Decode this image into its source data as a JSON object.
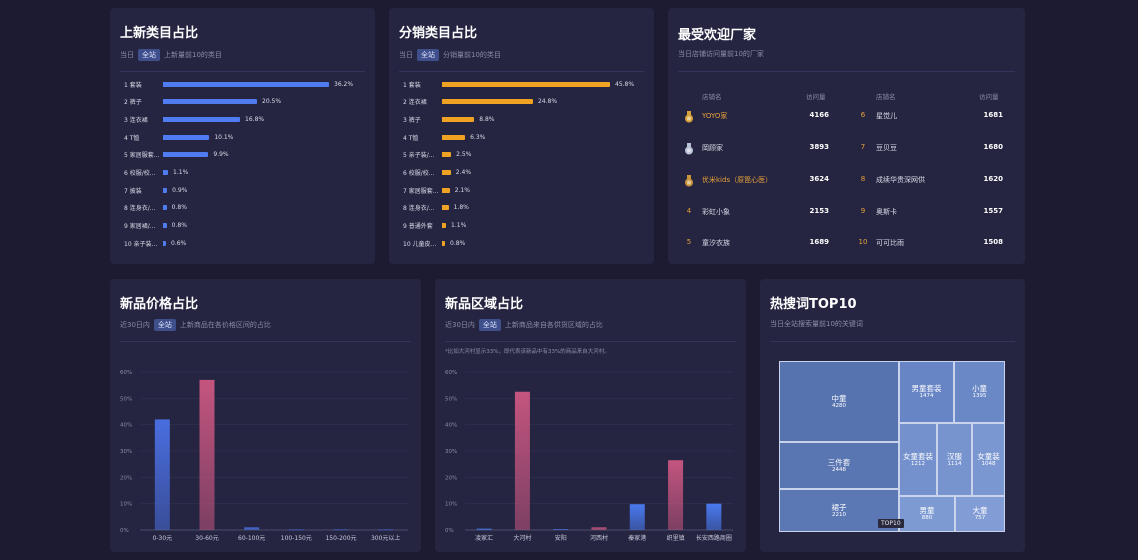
{
  "panel1": {
    "title": "上新类目占比",
    "sub_prefix": "当日",
    "tag": "全站",
    "sub_suffix": "上新量前10的类目",
    "color": "#4f7cf0",
    "items": [
      {
        "label": "1 套装",
        "value": 36.2,
        "value_text": "36.2%"
      },
      {
        "label": "2 裤子",
        "value": 20.5,
        "value_text": "20.5%"
      },
      {
        "label": "3 连衣裙",
        "value": 16.8,
        "value_text": "16.8%"
      },
      {
        "label": "4 T恤",
        "value": 10.1,
        "value_text": "10.1%"
      },
      {
        "label": "5 家居服套...",
        "value": 9.9,
        "value_text": "9.9%"
      },
      {
        "label": "6 校服/校...",
        "value": 1.1,
        "value_text": "1.1%"
      },
      {
        "label": "7 披装",
        "value": 0.9,
        "value_text": "0.9%"
      },
      {
        "label": "8 连身衣/...",
        "value": 0.8,
        "value_text": "0.8%"
      },
      {
        "label": "9 家居裙/...",
        "value": 0.8,
        "value_text": "0.8%"
      },
      {
        "label": "10 亲子装...",
        "value": 0.6,
        "value_text": "0.6%"
      }
    ]
  },
  "panel2": {
    "title": "分销类目占比",
    "sub_prefix": "当日",
    "tag": "全站",
    "sub_suffix": "分销量前10的类目",
    "color": "#f0a323",
    "items": [
      {
        "label": "1 套装",
        "value": 45.8,
        "value_text": "45.8%"
      },
      {
        "label": "2 连衣裙",
        "value": 24.8,
        "value_text": "24.8%"
      },
      {
        "label": "3 裤子",
        "value": 8.8,
        "value_text": "8.8%"
      },
      {
        "label": "4 T恤",
        "value": 6.3,
        "value_text": "6.3%"
      },
      {
        "label": "5 亲子装/...",
        "value": 2.5,
        "value_text": "2.5%"
      },
      {
        "label": "6 校服/校...",
        "value": 2.4,
        "value_text": "2.4%"
      },
      {
        "label": "7 家居服套...",
        "value": 2.1,
        "value_text": "2.1%"
      },
      {
        "label": "8 连身衣/...",
        "value": 1.8,
        "value_text": "1.8%"
      },
      {
        "label": "9 普通外套",
        "value": 1.1,
        "value_text": "1.1%"
      },
      {
        "label": "10 儿童皮...",
        "value": 0.8,
        "value_text": "0.8%"
      }
    ]
  },
  "panel3": {
    "title": "最受欢迎厂家",
    "sub": "当日店铺访问量前10的厂家",
    "col_name": "店铺名",
    "col_visits": "访问量",
    "left": [
      {
        "rank": "1",
        "medal": "gold",
        "name": "YOYO家",
        "visits": "4166",
        "highlight": true
      },
      {
        "rank": "2",
        "medal": "silver",
        "name": "岡顾家",
        "visits": "3893",
        "highlight": false
      },
      {
        "rank": "3",
        "medal": "bronze",
        "name": "优米kids（原箆心医）",
        "visits": "3624",
        "highlight": true
      },
      {
        "rank": "4",
        "medal": "",
        "name": "彩虹小象",
        "visits": "2153",
        "highlight": false
      },
      {
        "rank": "5",
        "medal": "",
        "name": "童汐衣族",
        "visits": "1689",
        "highlight": false
      }
    ],
    "right": [
      {
        "rank": "6",
        "name": "星觉儿",
        "visits": "1681"
      },
      {
        "rank": "7",
        "name": "豆贝豆",
        "visits": "1680"
      },
      {
        "rank": "8",
        "name": "成续华贵深网供",
        "visits": "1620"
      },
      {
        "rank": "9",
        "name": "奥斯卡",
        "visits": "1557"
      },
      {
        "rank": "10",
        "name": "可可比雨",
        "visits": "1508"
      }
    ]
  },
  "panel4": {
    "title": "新品价格占比",
    "sub_prefix": "近30日内",
    "tag": "全站",
    "sub_suffix": "上新商品在各价格区间的占比"
  },
  "panel5": {
    "title": "新品区域占比",
    "sub_prefix": "近30日内",
    "tag": "全站",
    "sub_suffix": "上新商品来自各供货区域的占比",
    "note": "*比如大河村显示33%，即代表该新品中有33%的商品来自大河村。"
  },
  "panel6": {
    "title": "热搜词TOP10",
    "sub": "当日全站搜索量前10的关键词",
    "badge": "TOP10",
    "cells": [
      {
        "name": "中童",
        "value": "4280"
      },
      {
        "name": "三件套",
        "value": "2448"
      },
      {
        "name": "裙子",
        "value": "2210"
      },
      {
        "name": "男童套装",
        "value": "1474"
      },
      {
        "name": "小童",
        "value": "1395"
      },
      {
        "name": "女童套装",
        "value": "1212"
      },
      {
        "name": "汉服",
        "value": "1114"
      },
      {
        "name": "女童装",
        "value": "1048"
      },
      {
        "name": "男童",
        "value": "880"
      },
      {
        "name": "大童",
        "value": "757"
      }
    ]
  },
  "chart_data": [
    {
      "type": "bar",
      "title": "新品价格占比",
      "categories": [
        "0-30元",
        "30-60元",
        "60-100元",
        "100-150元",
        "150-200元",
        "300元以上"
      ],
      "values": [
        42,
        57,
        1,
        0.2,
        0.2,
        0.2
      ],
      "ylim": [
        0,
        60
      ],
      "yticks": [
        "0%",
        "10%",
        "20%",
        "30%",
        "40%",
        "50%",
        "60%"
      ],
      "colors": [
        "#4a6ee0",
        "#c4557f",
        "#4a6ee0",
        "#4a6ee0",
        "#4a6ee0",
        "#4a6ee0"
      ]
    },
    {
      "type": "bar",
      "title": "新品区域占比",
      "categories": [
        "凌家汇",
        "大河村",
        "安阳",
        "河西村",
        "秦家港",
        "织里镇",
        "长安西路商圈"
      ],
      "values": [
        0.5,
        52.5,
        0.3,
        1,
        9.8,
        26.5,
        10
      ],
      "ylim": [
        0,
        60
      ],
      "yticks": [
        "0%",
        "10%",
        "20%",
        "30%",
        "40%",
        "50%",
        "60%"
      ],
      "colors": [
        "#4a7af0",
        "#c4557f",
        "#4a7af0",
        "#c4557f",
        "#4a7af0",
        "#c4557f",
        "#4a7af0"
      ]
    }
  ]
}
